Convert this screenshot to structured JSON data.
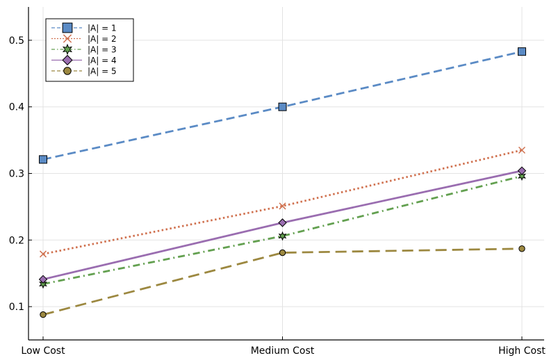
{
  "chart_data": {
    "type": "line",
    "categories": [
      "Low Cost",
      "Medium Cost",
      "High Cost"
    ],
    "ylim": [
      0.05,
      0.55
    ],
    "yticks": [
      0.1,
      0.2,
      0.3,
      0.4,
      0.5
    ],
    "grid": true,
    "legend_position": "top-left",
    "title": "",
    "xlabel": "",
    "ylabel": "",
    "series": [
      {
        "name": "|A| = 1",
        "values": [
          0.321,
          0.4,
          0.483
        ],
        "color": "#5b8bc5",
        "dash": "dash",
        "marker": "square"
      },
      {
        "name": "|A| = 2",
        "values": [
          0.179,
          0.251,
          0.335
        ],
        "color": "#d0714f",
        "dash": "dot",
        "marker": "x"
      },
      {
        "name": "|A| = 3",
        "values": [
          0.134,
          0.206,
          0.296
        ],
        "color": "#63a050",
        "dash": "dashdot",
        "marker": "star"
      },
      {
        "name": "|A| = 4",
        "values": [
          0.141,
          0.226,
          0.304
        ],
        "color": "#9a6db0",
        "dash": "solid",
        "marker": "diamond"
      },
      {
        "name": "|A| = 5",
        "values": [
          0.088,
          0.181,
          0.187
        ],
        "color": "#9c8840",
        "dash": "longdash",
        "marker": "circle"
      }
    ]
  }
}
